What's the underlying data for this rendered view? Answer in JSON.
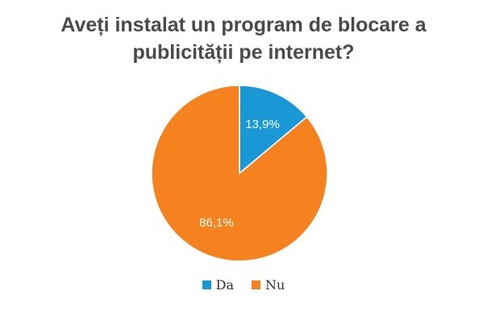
{
  "chart_data": {
    "type": "pie",
    "title_lines": [
      "Aveți instalat un program de blocare a",
      "publicității pe internet?"
    ],
    "legend_position": "bottom",
    "slices": [
      {
        "label": "Da",
        "value": 13.9,
        "value_label": "13,9%",
        "color": "#1a98d5"
      },
      {
        "label": "Nu",
        "value": 86.1,
        "value_label": "86,1%",
        "color": "#f5821f"
      }
    ]
  }
}
